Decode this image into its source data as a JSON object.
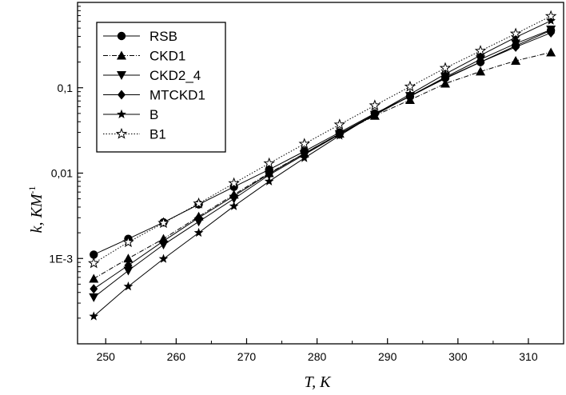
{
  "chart_data": {
    "type": "line",
    "title": "",
    "xlabel": "T, K",
    "ylabel": "k, KM",
    "ylabel_superscript": "-1",
    "y_scale": "log",
    "xlim": [
      246,
      315
    ],
    "ylim": [
      0.0001,
      1
    ],
    "x_ticks": [
      250,
      260,
      270,
      280,
      290,
      300,
      310
    ],
    "y_ticks": [
      {
        "value": 0.001,
        "label": "1E-3"
      },
      {
        "value": 0.01,
        "label": "0,01"
      },
      {
        "value": 0.1,
        "label": "0,1"
      }
    ],
    "grid": false,
    "legend_position": "top-left",
    "series": [
      {
        "name": "RSB",
        "marker": "circle",
        "line": "solid",
        "x": [
          248.3,
          253.2,
          258.2,
          263.2,
          268.2,
          273.2,
          278.2,
          283.2,
          288.2,
          293.2,
          298.2,
          303.2,
          308.2,
          313.2
        ],
        "y": [
          0.00111,
          0.0017,
          0.00265,
          0.0043,
          0.0069,
          0.011,
          0.018,
          0.03,
          0.05,
          0.079,
          0.13,
          0.2,
          0.31,
          0.47
        ]
      },
      {
        "name": "CKD1",
        "marker": "triangle-up",
        "line": "dashdot",
        "x": [
          248.3,
          253.2,
          258.2,
          263.2,
          268.2,
          273.2,
          278.2,
          283.2,
          288.2,
          293.2,
          298.2,
          303.2,
          308.2,
          313.2
        ],
        "y": [
          0.00058,
          0.001,
          0.0017,
          0.0031,
          0.0056,
          0.01,
          0.017,
          0.029,
          0.047,
          0.072,
          0.112,
          0.155,
          0.207,
          0.26
        ]
      },
      {
        "name": "CKD2_4",
        "marker": "triangle-down",
        "line": "solid",
        "x": [
          248.3,
          253.2,
          258.2,
          263.2,
          268.2,
          273.2,
          278.2,
          283.2,
          288.2,
          293.2,
          298.2,
          303.2,
          308.2,
          313.2
        ],
        "y": [
          0.00035,
          0.00072,
          0.00145,
          0.0027,
          0.005,
          0.0095,
          0.0165,
          0.0285,
          0.048,
          0.08,
          0.133,
          0.215,
          0.33,
          0.48
        ]
      },
      {
        "name": "MTCKD1",
        "marker": "diamond",
        "line": "solid",
        "x": [
          248.3,
          253.2,
          258.2,
          263.2,
          268.2,
          273.2,
          278.2,
          283.2,
          288.2,
          293.2,
          298.2,
          303.2,
          308.2,
          313.2
        ],
        "y": [
          0.00044,
          0.00083,
          0.0016,
          0.003,
          0.0054,
          0.0098,
          0.017,
          0.029,
          0.049,
          0.08,
          0.128,
          0.2,
          0.3,
          0.44
        ]
      },
      {
        "name": "B",
        "marker": "star",
        "line": "solid",
        "x": [
          248.3,
          253.2,
          258.2,
          263.2,
          268.2,
          273.2,
          278.2,
          283.2,
          288.2,
          293.2,
          298.2,
          303.2,
          308.2,
          313.2
        ],
        "y": [
          0.00021,
          0.00047,
          0.00099,
          0.002,
          0.0041,
          0.008,
          0.015,
          0.0275,
          0.049,
          0.084,
          0.145,
          0.24,
          0.39,
          0.61
        ]
      },
      {
        "name": "B1",
        "marker": "star-open",
        "line": "dotted",
        "x": [
          248.3,
          253.2,
          258.2,
          263.2,
          268.2,
          273.2,
          278.2,
          283.2,
          288.2,
          293.2,
          298.2,
          303.2,
          308.2,
          313.2
        ],
        "y": [
          0.00088,
          0.00155,
          0.0026,
          0.0044,
          0.0076,
          0.013,
          0.022,
          0.037,
          0.062,
          0.103,
          0.17,
          0.27,
          0.43,
          0.69
        ]
      }
    ]
  }
}
